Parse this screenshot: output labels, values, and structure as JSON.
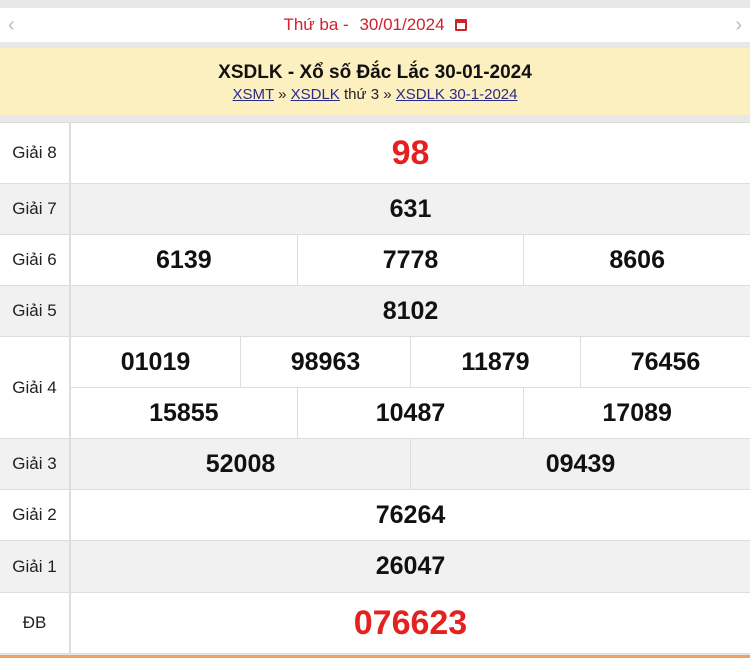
{
  "date_bar": {
    "day": "Thứ ba - ",
    "date": "30/01/2024",
    "prev_icon": "chevron-left-icon",
    "next_icon": "chevron-right-icon",
    "calendar_icon": "calendar-icon"
  },
  "header": {
    "title": "XSDLK - Xổ số Đắc Lắc 30-01-2024",
    "crumb1": "XSMT",
    "sep1": " » ",
    "crumb2": "XSDLK",
    "mid": " thứ 3",
    "sep2": " » ",
    "crumb3": "XSDLK 30-1-2024"
  },
  "prizes": [
    {
      "label": "Giải 8",
      "values": [
        [
          "98"
        ]
      ]
    },
    {
      "label": "Giải 7",
      "values": [
        [
          "631"
        ]
      ]
    },
    {
      "label": "Giải 6",
      "values": [
        [
          "6139",
          "7778",
          "8606"
        ]
      ]
    },
    {
      "label": "Giải 5",
      "values": [
        [
          "8102"
        ]
      ]
    },
    {
      "label": "Giải 4",
      "values": [
        [
          "01019",
          "98963",
          "11879",
          "76456"
        ],
        [
          "15855",
          "10487",
          "17089"
        ]
      ]
    },
    {
      "label": "Giải 3",
      "values": [
        [
          "52008",
          "09439"
        ]
      ]
    },
    {
      "label": "Giải 2",
      "values": [
        [
          "76264"
        ]
      ]
    },
    {
      "label": "Giải 1",
      "values": [
        [
          "26047"
        ]
      ]
    },
    {
      "label": "ĐB",
      "values": [
        [
          "076623"
        ]
      ]
    }
  ],
  "colors": {
    "accent_red": "#e3211f",
    "header_bg": "#fcf0c0"
  }
}
